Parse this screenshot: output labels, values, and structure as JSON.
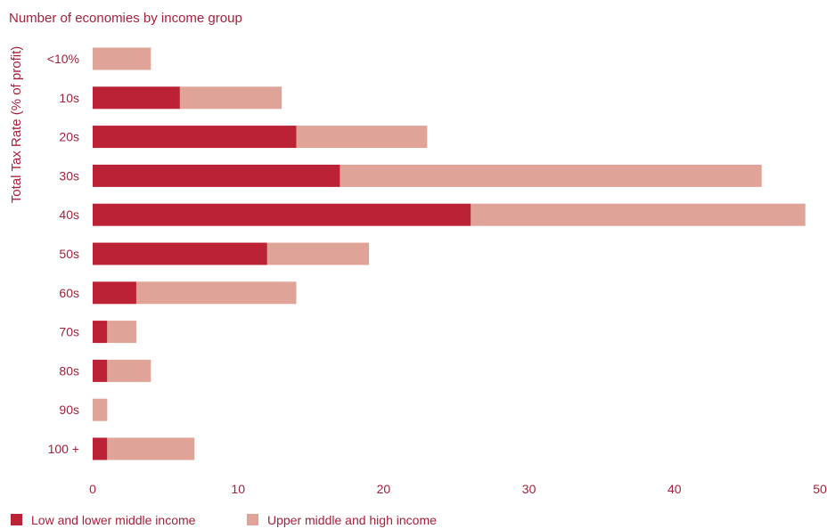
{
  "chart_data": {
    "type": "bar",
    "orientation": "horizontal",
    "stacked": true,
    "title": "Number of economies by income group",
    "ylabel": "Total Tax Rate (% of profit)",
    "xlabel": "",
    "categories": [
      "<10%",
      "10s",
      "20s",
      "30s",
      "40s",
      "50s",
      "60s",
      "70s",
      "80s",
      "90s",
      "100 +"
    ],
    "series": [
      {
        "name": "Low and lower middle income",
        "color": "#BC2235",
        "values": [
          0,
          6,
          14,
          17,
          26,
          12,
          3,
          1,
          1,
          0,
          1
        ]
      },
      {
        "name": "Upper middle and high income",
        "color": "#E0A398",
        "values": [
          4,
          7,
          9,
          29,
          23,
          7,
          11,
          2,
          3,
          1,
          6
        ]
      }
    ],
    "xlim": [
      0,
      50
    ],
    "xticks": [
      0,
      10,
      20,
      30,
      40,
      50
    ],
    "grid": false,
    "legend_position": "bottom-left",
    "colors": {
      "text": "#A62139",
      "dark_bar": "#BC2235",
      "light_bar": "#E0A398"
    }
  }
}
